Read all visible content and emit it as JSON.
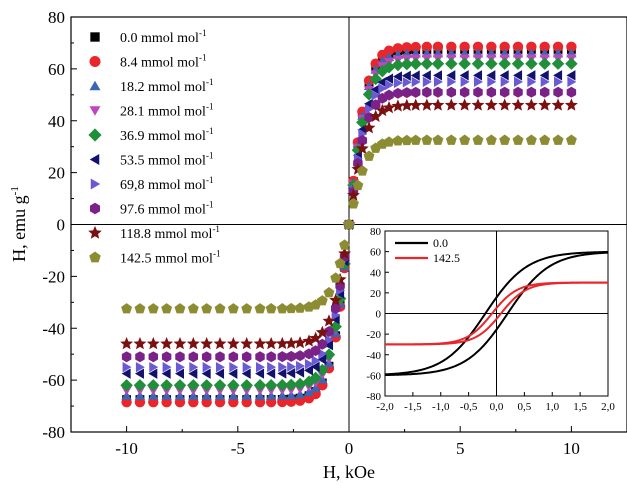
{
  "chart_data": [
    {
      "type": "scatter",
      "title": "",
      "xlabel": "H, kOe",
      "ylabel": "H, emu g",
      "ylabel_sup": "-1",
      "xlim": [
        -12.5,
        12.5
      ],
      "ylim": [
        -80,
        80
      ],
      "x_ticks": [
        "-10",
        "-5",
        "0",
        "5",
        "10"
      ],
      "x_tick_values": [
        -10,
        -5,
        0,
        5,
        10
      ],
      "y_ticks": [
        "-80",
        "-60",
        "-40",
        "-20",
        "0",
        "20",
        "40",
        "60",
        "80"
      ],
      "y_tick_values": [
        -80,
        -60,
        -40,
        -20,
        0,
        20,
        40,
        60,
        80
      ],
      "grid": false,
      "legend_position": "top-left",
      "h_kOe": [
        -10,
        -9.4,
        -8.8,
        -8.2,
        -7.6,
        -7.0,
        -6.4,
        -5.8,
        -5.2,
        -4.6,
        -4.0,
        -3.5,
        -3.0,
        -2.6,
        -2.2,
        -1.8,
        -1.5,
        -1.2,
        -0.9,
        -0.6,
        -0.4,
        -0.2,
        0,
        0.2,
        0.4,
        0.6,
        0.9,
        1.2,
        1.5,
        1.8,
        2.2,
        2.6,
        3.0,
        3.5,
        4.0,
        4.6,
        5.2,
        5.8,
        6.4,
        7.0,
        7.6,
        8.2,
        8.8,
        9.4,
        10
      ],
      "series": [
        {
          "name": "0.0 mmol mol",
          "name_sup": "-1",
          "marker": "square",
          "color": "#000000",
          "ms": 67.5
        },
        {
          "name": "8.4 mmol mol",
          "name_sup": "-1",
          "marker": "circle",
          "color": "#e8262b",
          "ms": 68.5
        },
        {
          "name": "18.2 mmol mol",
          "name_sup": "-1",
          "marker": "triangle-up",
          "color": "#3a66b5",
          "ms": 66.0
        },
        {
          "name": "28.1 mmol mol",
          "name_sup": "-1",
          "marker": "triangle-down",
          "color": "#c045c0",
          "ms": 64.0
        },
        {
          "name": "36.9 mmol mol",
          "name_sup": "-1",
          "marker": "diamond",
          "color": "#1f8f3a",
          "ms": 62.0
        },
        {
          "name": "53.5 mmol mol",
          "name_sup": "-1",
          "marker": "triangle-left",
          "color": "#12126e",
          "ms": 57.5
        },
        {
          "name": "69,8 mmol mol",
          "name_sup": "-1",
          "marker": "triangle-right",
          "color": "#6a5ad4",
          "ms": 55.0
        },
        {
          "name": "97.6 mmol mol",
          "name_sup": "-1",
          "marker": "hexagon",
          "color": "#7a2288",
          "ms": 51.0
        },
        {
          "name": "118.8 mmol mol",
          "name_sup": "-1",
          "marker": "star",
          "color": "#7a1010",
          "ms": 46.0
        },
        {
          "name": "142.5 mmol mol",
          "name_sup": "-1",
          "marker": "pentagon",
          "color": "#8c8c32",
          "ms": 32.5
        }
      ]
    },
    {
      "type": "line",
      "title": "",
      "xlabel": "",
      "ylabel": "",
      "xlim": [
        -2.0,
        2.0
      ],
      "ylim": [
        -80,
        80
      ],
      "x_ticks": [
        "-2,0",
        "-1,5",
        "-1,0",
        "-0,5",
        "0,0",
        "0,5",
        "1,0",
        "1,5",
        "2,0"
      ],
      "x_tick_values": [
        -2.0,
        -1.5,
        -1.0,
        -0.5,
        0.0,
        0.5,
        1.0,
        1.5,
        2.0
      ],
      "y_ticks": [
        "-80",
        "-60",
        "-40",
        "-20",
        "0",
        "20",
        "40",
        "60",
        "80"
      ],
      "y_tick_values": [
        -80,
        -60,
        -40,
        -20,
        0,
        20,
        40,
        60,
        80
      ],
      "grid": false,
      "legend_position": "top-left",
      "series": [
        {
          "name": "0.0",
          "color": "#000000",
          "ms": 60,
          "hc": 0.2
        },
        {
          "name": "142.5",
          "color": "#e8262b",
          "ms": 30,
          "hc": 0.08
        }
      ]
    }
  ]
}
